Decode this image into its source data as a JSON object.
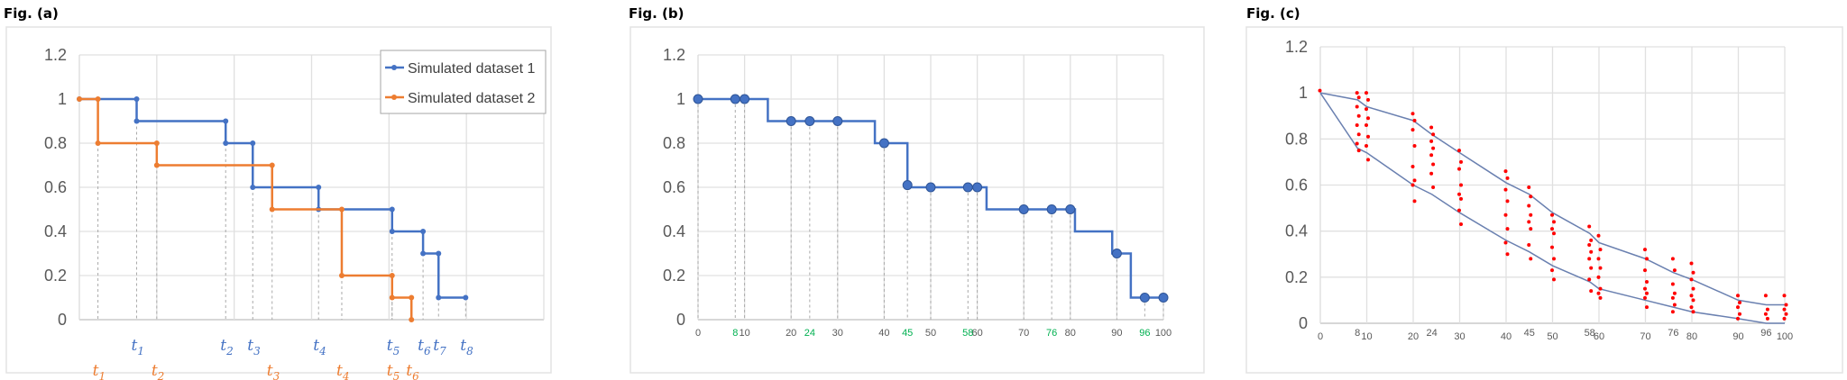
{
  "chart_data": [
    {
      "panel_title": "Fig. (a)",
      "type": "line",
      "step": true,
      "ylim": [
        0,
        1.2
      ],
      "yticks": [
        "0",
        "0.2",
        "0.4",
        "0.6",
        "0.8",
        "1",
        "1.2"
      ],
      "xlim": [
        0,
        6
      ],
      "grid": true,
      "legend_position": "top-right",
      "series": [
        {
          "name": "Simulated dataset 1",
          "color": "#4472C4",
          "points": [
            [
              0,
              1
            ],
            [
              0.74,
              1
            ],
            [
              0.74,
              0.9
            ],
            [
              1.89,
              0.9
            ],
            [
              1.89,
              0.8
            ],
            [
              2.24,
              0.8
            ],
            [
              2.24,
              0.6
            ],
            [
              3.09,
              0.6
            ],
            [
              3.09,
              0.5
            ],
            [
              4.04,
              0.5
            ],
            [
              4.04,
              0.4
            ],
            [
              4.44,
              0.4
            ],
            [
              4.44,
              0.3
            ],
            [
              4.64,
              0.3
            ],
            [
              4.64,
              0.1
            ],
            [
              4.99,
              0.1
            ]
          ],
          "event_labels": [
            {
              "x": 0.74,
              "t": "t",
              "sub": "1"
            },
            {
              "x": 1.89,
              "t": "t",
              "sub": "2"
            },
            {
              "x": 2.24,
              "t": "t",
              "sub": "3"
            },
            {
              "x": 3.09,
              "t": "t",
              "sub": "4"
            },
            {
              "x": 4.04,
              "t": "t",
              "sub": "5"
            },
            {
              "x": 4.44,
              "t": "t",
              "sub": "6"
            },
            {
              "x": 4.64,
              "t": "t",
              "sub": "7"
            },
            {
              "x": 4.99,
              "t": "t",
              "sub": "8"
            }
          ]
        },
        {
          "name": "Simulated dataset 2",
          "color": "#ED7D31",
          "points": [
            [
              0,
              1
            ],
            [
              0.24,
              1
            ],
            [
              0.24,
              0.8
            ],
            [
              1.0,
              0.8
            ],
            [
              1.0,
              0.7
            ],
            [
              2.49,
              0.7
            ],
            [
              2.49,
              0.5
            ],
            [
              3.39,
              0.5
            ],
            [
              3.39,
              0.2
            ],
            [
              4.04,
              0.2
            ],
            [
              4.04,
              0.1
            ],
            [
              4.29,
              0.1
            ],
            [
              4.29,
              0
            ]
          ],
          "event_labels": [
            {
              "x": 0.24,
              "t": "t",
              "sub": "1"
            },
            {
              "x": 1.0,
              "t": "t",
              "sub": "2"
            },
            {
              "x": 2.49,
              "t": "t",
              "sub": "3"
            },
            {
              "x": 3.39,
              "t": "t",
              "sub": "4"
            },
            {
              "x": 4.04,
              "t": "t",
              "sub": "5"
            },
            {
              "x": 4.29,
              "t": "t",
              "sub": "6"
            }
          ]
        }
      ]
    },
    {
      "panel_title": "Fig. (b)",
      "type": "line",
      "step": true,
      "ylim": [
        0,
        1.2
      ],
      "yticks": [
        "0",
        "0.2",
        "0.4",
        "0.6",
        "0.8",
        "1",
        "1.2"
      ],
      "xlim": [
        0,
        100
      ],
      "xticks": [
        "0",
        "10",
        "20",
        "30",
        "40",
        "50",
        "60",
        "70",
        "80",
        "90",
        "100"
      ],
      "xticks_highlight": [
        "8",
        "24",
        "45",
        "58",
        "76",
        "96"
      ],
      "highlight_color": "#00B050",
      "line_color": "#4472C4",
      "step_line": [
        [
          0,
          1
        ],
        [
          15,
          1
        ],
        [
          15,
          0.9
        ],
        [
          38,
          0.9
        ],
        [
          38,
          0.8
        ],
        [
          45,
          0.8
        ],
        [
          45,
          0.6
        ],
        [
          62,
          0.6
        ],
        [
          62,
          0.5
        ],
        [
          81,
          0.5
        ],
        [
          81,
          0.4
        ],
        [
          89,
          0.4
        ],
        [
          89,
          0.3
        ],
        [
          93,
          0.3
        ],
        [
          93,
          0.1
        ],
        [
          100,
          0.1
        ]
      ],
      "markers": [
        [
          0,
          1
        ],
        [
          8,
          1
        ],
        [
          10,
          1
        ],
        [
          20,
          0.9
        ],
        [
          24,
          0.9
        ],
        [
          30,
          0.9
        ],
        [
          40,
          0.8
        ],
        [
          45,
          0.61
        ],
        [
          50,
          0.6
        ],
        [
          58,
          0.6
        ],
        [
          60,
          0.6
        ],
        [
          70,
          0.5
        ],
        [
          76,
          0.5
        ],
        [
          80,
          0.5
        ],
        [
          90,
          0.3
        ],
        [
          96,
          0.1
        ],
        [
          100,
          0.1
        ]
      ]
    },
    {
      "panel_title": "Fig. (c)",
      "type": "scatter",
      "ylim": [
        0,
        1.2
      ],
      "yticks": [
        "0",
        "0.2",
        "0.4",
        "0.6",
        "0.8",
        "1",
        "1.2"
      ],
      "xlim": [
        0,
        100
      ],
      "xticks": [
        "0",
        "10",
        "20",
        "30",
        "40",
        "50",
        "60",
        "70",
        "80",
        "90",
        "100"
      ],
      "xticks_minor": [
        "8",
        "24",
        "45",
        "58",
        "76",
        "96"
      ],
      "line_color": "#6A80B0",
      "dot_color": "#FF0000",
      "upper_bound": [
        [
          0,
          1
        ],
        [
          8,
          0.97
        ],
        [
          10,
          0.94
        ],
        [
          20,
          0.88
        ],
        [
          24,
          0.82
        ],
        [
          30,
          0.74
        ],
        [
          40,
          0.61
        ],
        [
          45,
          0.56
        ],
        [
          50,
          0.48
        ],
        [
          58,
          0.39
        ],
        [
          60,
          0.35
        ],
        [
          70,
          0.28
        ],
        [
          76,
          0.22
        ],
        [
          80,
          0.19
        ],
        [
          90,
          0.1
        ],
        [
          96,
          0.08
        ],
        [
          100,
          0.08
        ]
      ],
      "lower_bound": [
        [
          0,
          1
        ],
        [
          8,
          0.76
        ],
        [
          10,
          0.74
        ],
        [
          20,
          0.6
        ],
        [
          24,
          0.56
        ],
        [
          30,
          0.48
        ],
        [
          40,
          0.36
        ],
        [
          45,
          0.31
        ],
        [
          50,
          0.25
        ],
        [
          58,
          0.18
        ],
        [
          60,
          0.15
        ],
        [
          70,
          0.1
        ],
        [
          76,
          0.07
        ],
        [
          80,
          0.05
        ],
        [
          90,
          0.02
        ],
        [
          96,
          0
        ],
        [
          100,
          0
        ]
      ],
      "dots": [
        {
          "x": 0,
          "y": [
            1.01
          ]
        },
        {
          "x": 8,
          "y": [
            1.0,
            0.98,
            0.94,
            0.9,
            0.86,
            0.82,
            0.78,
            0.75
          ]
        },
        {
          "x": 10,
          "y": [
            1.0,
            0.97,
            0.93,
            0.89,
            0.86,
            0.81,
            0.77,
            0.71
          ]
        },
        {
          "x": 20,
          "y": [
            0.91,
            0.88,
            0.84,
            0.77,
            0.68,
            0.62,
            0.6,
            0.53
          ]
        },
        {
          "x": 24,
          "y": [
            0.85,
            0.82,
            0.79,
            0.76,
            0.73,
            0.69,
            0.65,
            0.59
          ]
        },
        {
          "x": 30,
          "y": [
            0.75,
            0.7,
            0.67,
            0.6,
            0.56,
            0.54,
            0.49,
            0.43
          ]
        },
        {
          "x": 40,
          "y": [
            0.66,
            0.63,
            0.58,
            0.53,
            0.47,
            0.41,
            0.35,
            0.3
          ]
        },
        {
          "x": 45,
          "y": [
            0.59,
            0.55,
            0.51,
            0.47,
            0.44,
            0.41,
            0.34,
            0.28
          ]
        },
        {
          "x": 50,
          "y": [
            0.47,
            0.44,
            0.41,
            0.39,
            0.33,
            0.28,
            0.23,
            0.19
          ]
        },
        {
          "x": 58,
          "y": [
            0.42,
            0.36,
            0.34,
            0.31,
            0.28,
            0.24,
            0.19,
            0.14
          ]
        },
        {
          "x": 60,
          "y": [
            0.38,
            0.32,
            0.28,
            0.24,
            0.2,
            0.15,
            0.13,
            0.11
          ]
        },
        {
          "x": 70,
          "y": [
            0.32,
            0.28,
            0.23,
            0.18,
            0.15,
            0.13,
            0.11,
            0.07
          ]
        },
        {
          "x": 76,
          "y": [
            0.28,
            0.23,
            0.17,
            0.13,
            0.11,
            0.08,
            0.05
          ]
        },
        {
          "x": 80,
          "y": [
            0.26,
            0.22,
            0.19,
            0.15,
            0.12,
            0.1,
            0.07,
            0.05
          ]
        },
        {
          "x": 90,
          "y": [
            0.12,
            0.09,
            0.07,
            0.04,
            0.02
          ]
        },
        {
          "x": 96,
          "y": [
            0.12,
            0.06,
            0.04,
            0.02
          ]
        },
        {
          "x": 100,
          "y": [
            0.12,
            0.08,
            0.06,
            0.04,
            0.02
          ]
        }
      ]
    }
  ]
}
